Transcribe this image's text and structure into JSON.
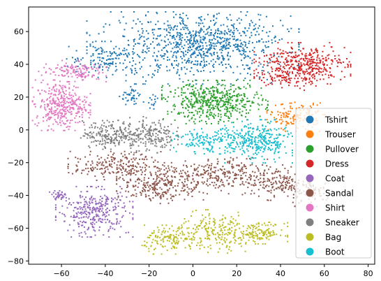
{
  "chart_data": {
    "type": "scatter",
    "title": "",
    "xlabel": "",
    "ylabel": "",
    "xlim": [
      -75,
      83
    ],
    "ylim": [
      -82,
      75
    ],
    "xticks": [
      -60,
      -40,
      -20,
      0,
      20,
      40,
      60,
      80
    ],
    "yticks": [
      -80,
      -60,
      -40,
      -20,
      0,
      20,
      40,
      60
    ],
    "grid": false,
    "legend_position": "center-right",
    "series": [
      {
        "name": "Tshirt",
        "color": "#1f77b4",
        "clusters": [
          {
            "cx": 0,
            "cy": 50,
            "sx": 22,
            "sy": 10,
            "n": 650
          },
          {
            "cx": 8,
            "cy": 55,
            "sx": 14,
            "sy": 7,
            "n": 260
          },
          {
            "cx": -40,
            "cy": 43,
            "sx": 8,
            "sy": 5,
            "n": 120
          },
          {
            "cx": -28,
            "cy": 20,
            "sx": 2.5,
            "sy": 3,
            "n": 40
          },
          {
            "cx": -18,
            "cy": 17,
            "sx": 1.2,
            "sy": 2,
            "n": 14
          }
        ]
      },
      {
        "name": "Trouser",
        "color": "#ff7f0e",
        "clusters": [
          {
            "cx": 47,
            "cy": 8,
            "sx": 6,
            "sy": 4,
            "n": 150
          }
        ]
      },
      {
        "name": "Pullover",
        "color": "#2ca02c",
        "clusters": [
          {
            "cx": 10,
            "cy": 17,
            "sx": 11,
            "sy": 6,
            "n": 520
          }
        ]
      },
      {
        "name": "Dress",
        "color": "#d62728",
        "clusters": [
          {
            "cx": 50,
            "cy": 40,
            "sx": 10,
            "sy": 6,
            "n": 380
          },
          {
            "cx": 42,
            "cy": 33,
            "sx": 6,
            "sy": 4,
            "n": 80
          }
        ]
      },
      {
        "name": "Coat",
        "color": "#9467bd",
        "clusters": [
          {
            "cx": -45,
            "cy": -50,
            "sx": 8,
            "sy": 7,
            "n": 330
          },
          {
            "cx": -61,
            "cy": -40,
            "sx": 2,
            "sy": 1.5,
            "n": 35
          }
        ]
      },
      {
        "name": "Sandal",
        "color": "#8c564b",
        "clusters": [
          {
            "cx": -35,
            "cy": -22,
            "sx": 10,
            "sy": 4,
            "n": 220
          },
          {
            "cx": -15,
            "cy": -34,
            "sx": 9,
            "sy": 5,
            "n": 230
          },
          {
            "cx": 10,
            "cy": -28,
            "sx": 12,
            "sy": 5,
            "n": 280
          },
          {
            "cx": 38,
            "cy": -32,
            "sx": 7,
            "sy": 5,
            "n": 160
          },
          {
            "cx": 55,
            "cy": -38,
            "sx": 5,
            "sy": 4,
            "n": 80
          }
        ]
      },
      {
        "name": "Shirt",
        "color": "#e377c2",
        "clusters": [
          {
            "cx": -60,
            "cy": 15,
            "sx": 6,
            "sy": 7,
            "n": 360
          },
          {
            "cx": -55,
            "cy": 36,
            "sx": 7,
            "sy": 3,
            "n": 130
          }
        ]
      },
      {
        "name": "Sneaker",
        "color": "#7f7f7f",
        "clusters": [
          {
            "cx": -38,
            "cy": -3,
            "sx": 6,
            "sy": 4,
            "n": 200
          },
          {
            "cx": -20,
            "cy": -3,
            "sx": 6,
            "sy": 5,
            "n": 200
          }
        ]
      },
      {
        "name": "Bag",
        "color": "#bcbd22",
        "clusters": [
          {
            "cx": -10,
            "cy": -67,
            "sx": 6,
            "sy": 4,
            "n": 140
          },
          {
            "cx": 10,
            "cy": -62,
            "sx": 8,
            "sy": 6,
            "n": 200
          },
          {
            "cx": 30,
            "cy": -63,
            "sx": 6,
            "sy": 3,
            "n": 140
          }
        ]
      },
      {
        "name": "Boot",
        "color": "#17becf",
        "clusters": [
          {
            "cx": 30,
            "cy": -7,
            "sx": 7,
            "sy": 6,
            "n": 300
          },
          {
            "cx": 8,
            "cy": -7,
            "sx": 8,
            "sy": 3.5,
            "n": 160
          }
        ]
      }
    ]
  }
}
